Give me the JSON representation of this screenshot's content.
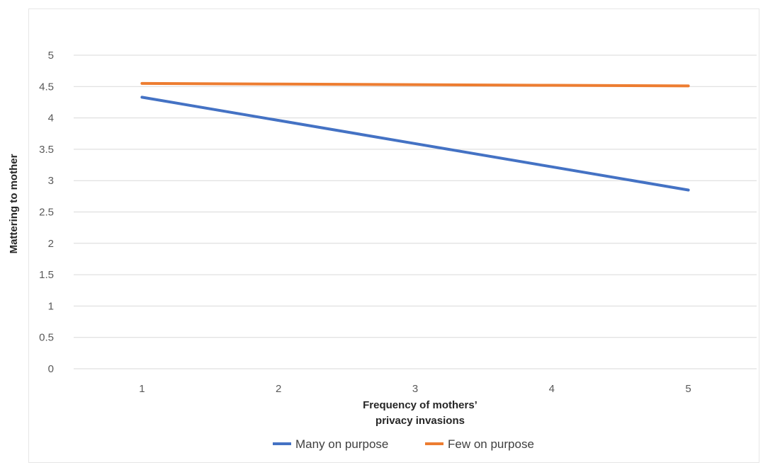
{
  "chart_data": {
    "type": "line",
    "title": "",
    "xlabel_lines": [
      "Frequency of mothers’",
      "privacy invasions"
    ],
    "ylabel": "Mattering to mother",
    "x": [
      1,
      2,
      3,
      4,
      5
    ],
    "x_tick_labels": [
      "1",
      "2",
      "3",
      "4",
      "5"
    ],
    "ylim": [
      0,
      5
    ],
    "y_ticks": [
      0,
      0.5,
      1,
      1.5,
      2,
      2.5,
      3,
      3.5,
      4,
      4.5,
      5
    ],
    "y_tick_labels": [
      "0",
      "0.5",
      "1",
      "1.5",
      "2",
      "2.5",
      "3",
      "3.5",
      "4",
      "4.5",
      "5"
    ],
    "grid": "horizontal",
    "legend_position": "bottom",
    "series": [
      {
        "name": "Many on purpose",
        "color": "#4472C4",
        "values": [
          4.33,
          3.96,
          3.59,
          3.22,
          2.85
        ]
      },
      {
        "name": "Few on purpose",
        "color": "#ED7D31",
        "values": [
          4.55,
          4.54,
          4.53,
          4.52,
          4.51
        ]
      }
    ]
  }
}
